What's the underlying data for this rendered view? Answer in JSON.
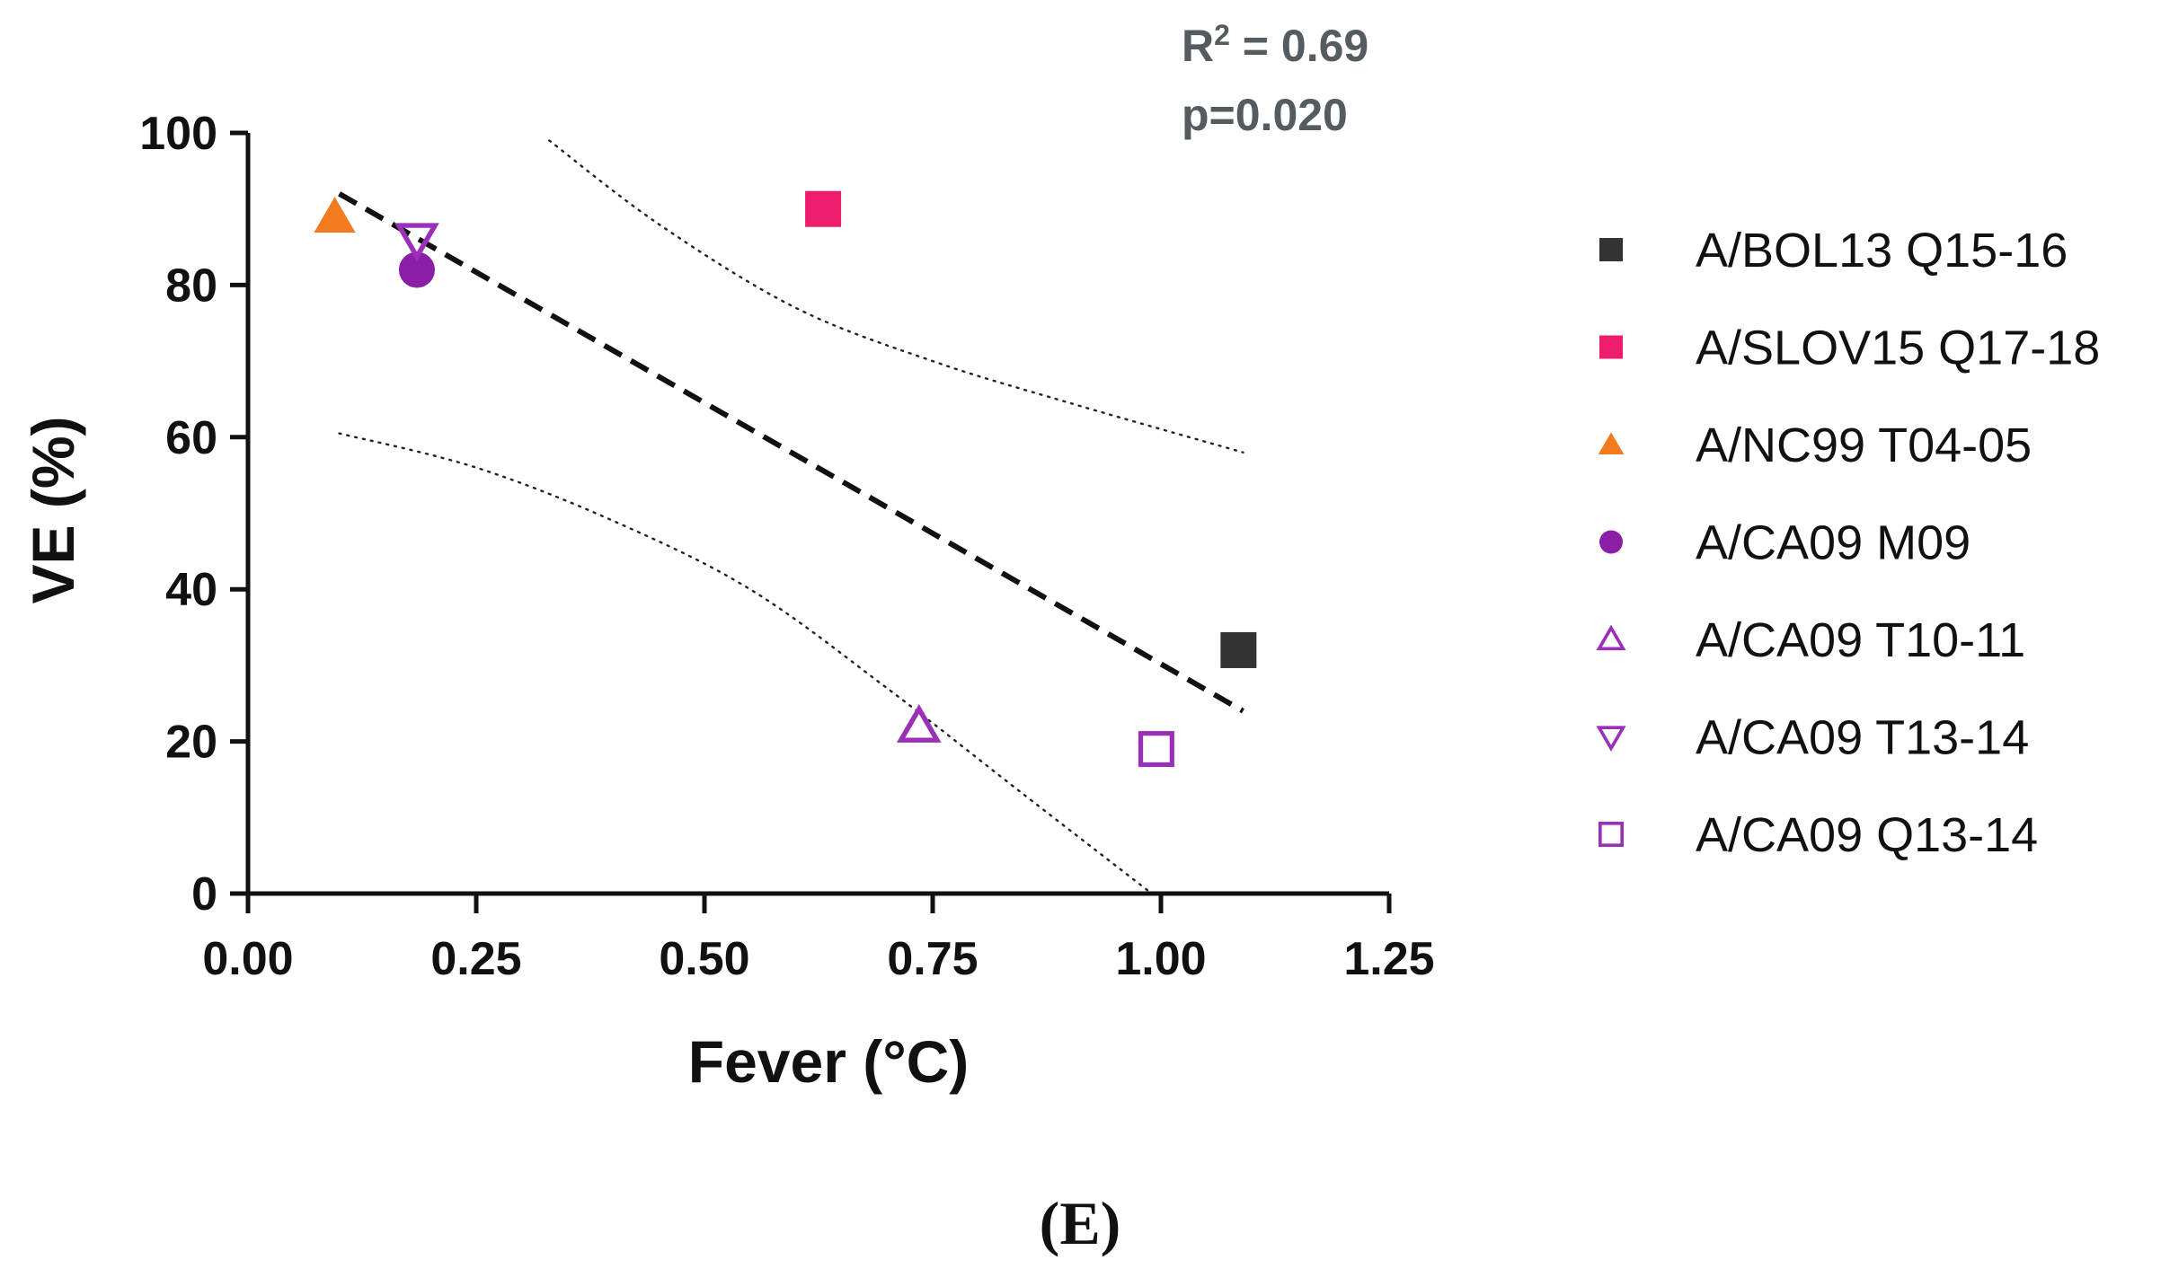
{
  "chart_data": {
    "type": "scatter",
    "xlabel": "Fever (°C)",
    "ylabel": "VE (%)",
    "xlim": [
      0,
      1.25
    ],
    "ylim": [
      0,
      100
    ],
    "x_ticks": [
      "0.00",
      "0.25",
      "0.50",
      "0.75",
      "1.00",
      "1.25"
    ],
    "x_tick_values": [
      0,
      0.25,
      0.5,
      0.75,
      1.0,
      1.25
    ],
    "y_ticks": [
      "0",
      "20",
      "40",
      "60",
      "80",
      "100"
    ],
    "y_tick_values": [
      0,
      20,
      40,
      60,
      80,
      100
    ],
    "grid": false,
    "legend_position": "right",
    "annotations": {
      "r2_prefix": "R",
      "r2_sup": "2",
      "r2_suffix": " = 0.69",
      "p_value": "p=0.020"
    },
    "panel_label": "(E)",
    "regression": {
      "x": [
        0.1,
        1.09
      ],
      "y": [
        92,
        24
      ],
      "style": "dashed"
    },
    "confidence_upper": {
      "x": [
        0.33,
        0.45,
        0.6,
        0.75,
        0.9,
        1.09
      ],
      "y": [
        99,
        88,
        77,
        70,
        64.5,
        58
      ]
    },
    "confidence_lower": {
      "x": [
        0.1,
        0.25,
        0.4,
        0.55,
        0.7,
        0.85,
        0.99
      ],
      "y": [
        60.5,
        56,
        49,
        40,
        27,
        13,
        0
      ]
    },
    "series": [
      {
        "name": "A/BOL13 Q15-16",
        "x": [
          1.085
        ],
        "y": [
          32
        ],
        "marker": "square",
        "filled": true,
        "color": "#333333"
      },
      {
        "name": "A/SLOV15 Q17-18",
        "x": [
          0.63
        ],
        "y": [
          90
        ],
        "marker": "square",
        "filled": true,
        "color": "#ee1c6c"
      },
      {
        "name": "A/NC99 T04-05",
        "x": [
          0.095
        ],
        "y": [
          89
        ],
        "marker": "triangle-up",
        "filled": true,
        "color": "#f47a20"
      },
      {
        "name": "A/CA09 M09",
        "x": [
          0.185
        ],
        "y": [
          82
        ],
        "marker": "circle",
        "filled": true,
        "color": "#8a1fa6"
      },
      {
        "name": "A/CA09 T10-11",
        "x": [
          0.735
        ],
        "y": [
          22
        ],
        "marker": "triangle-up",
        "filled": false,
        "color": "#9b30b8"
      },
      {
        "name": "A/CA09 T13-14",
        "x": [
          0.185
        ],
        "y": [
          86
        ],
        "marker": "triangle-down",
        "filled": false,
        "color": "#9b30b8"
      },
      {
        "name": "A/CA09 Q13-14",
        "x": [
          0.995
        ],
        "y": [
          19
        ],
        "marker": "square",
        "filled": false,
        "color": "#9b30b8"
      }
    ]
  }
}
